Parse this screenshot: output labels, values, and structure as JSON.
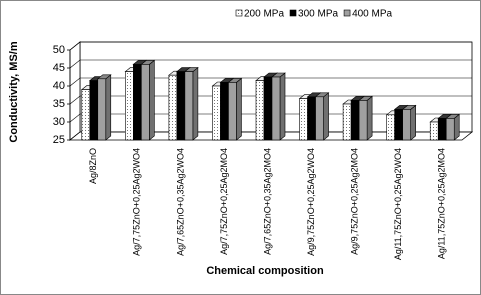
{
  "chart_data": {
    "type": "bar3d",
    "y_label": "Conductivity, MS/m",
    "x_label": "Chemical composition",
    "categories": [
      "Ag/8ZnO",
      "Ag/7,75ZnO+0,25Ag2WO4",
      "Ag/7,65ZnO+0,35Ag2WO4",
      "Ag/7,75ZnO+0,25Ag2MO4",
      "Ag/7,65ZnO+0,35Ag2MO4",
      "Ag/9,75ZnO+0,25Ag2WO4",
      "Ag/9,75ZnO+0,25Ag2MO4",
      "Ag/11,75ZnO+0,25Ag2WO4",
      "Ag/11,75ZnO+0,25Ag2MO4"
    ],
    "series": [
      {
        "name": "200 MPa",
        "color": "#ffffff",
        "pattern": "dots",
        "values": [
          39,
          44,
          43,
          40,
          41.5,
          36.5,
          35,
          32,
          30
        ]
      },
      {
        "name": "300 MPa",
        "color": "#000000",
        "values": [
          41.5,
          46,
          44,
          41,
          42.5,
          37,
          36,
          33.5,
          31
        ]
      },
      {
        "name": "400 MPa",
        "color": "#a0a0a0",
        "values": [
          42,
          46,
          44,
          41,
          42.5,
          37,
          36,
          33.5,
          31
        ]
      }
    ],
    "ylim": [
      25,
      50
    ],
    "yticks": [
      25,
      30,
      35,
      40,
      45,
      50
    ],
    "grid": true,
    "legend": "top"
  }
}
